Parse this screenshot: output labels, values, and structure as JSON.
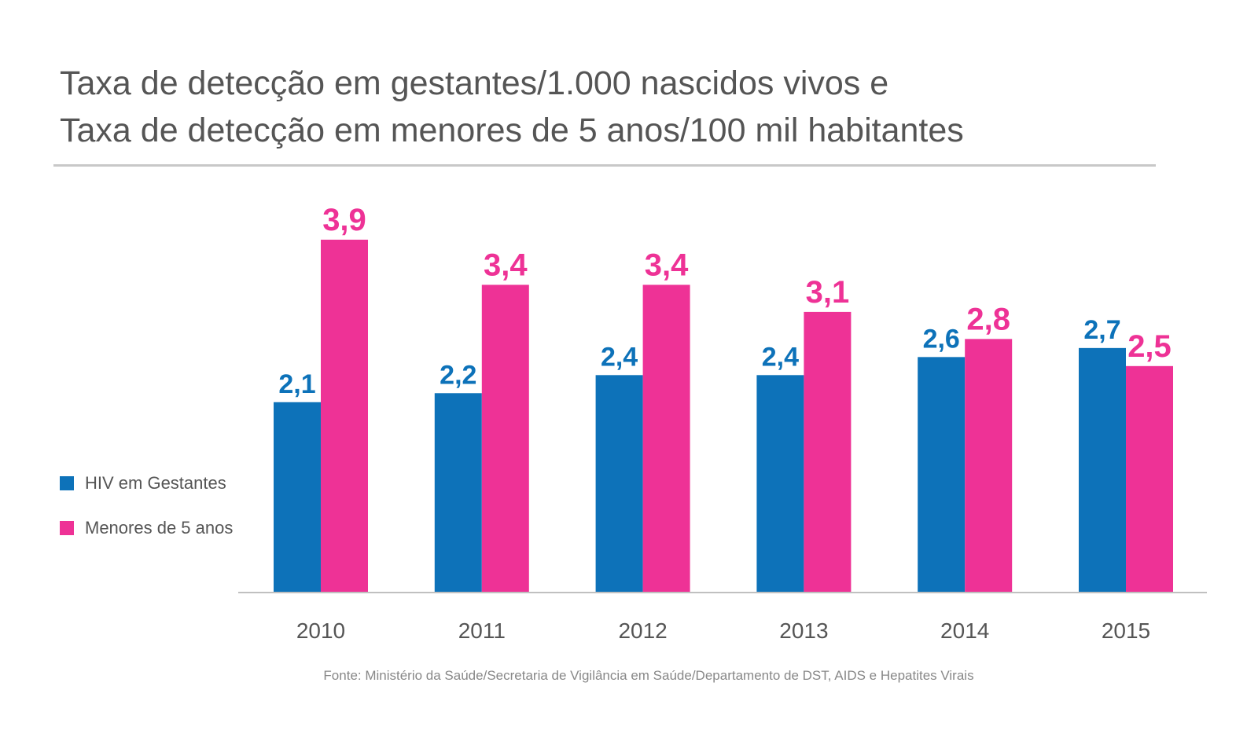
{
  "chart_data": {
    "type": "bar",
    "title_lines": [
      "Taxa de detecção em gestantes/1.000 nascidos vivos e",
      "Taxa de detecção em menores de 5 anos/100 mil habitantes"
    ],
    "categories": [
      "2010",
      "2011",
      "2012",
      "2013",
      "2014",
      "2015"
    ],
    "series": [
      {
        "name": "HIV em Gestantes",
        "values": [
          2.1,
          2.2,
          2.4,
          2.4,
          2.6,
          2.7
        ],
        "labels": [
          "2,1",
          "2,2",
          "2,4",
          "2,4",
          "2,6",
          "2,7"
        ],
        "color": "#0d72b9"
      },
      {
        "name": "Menores de 5 anos",
        "values": [
          3.9,
          3.4,
          3.4,
          3.1,
          2.8,
          2.5
        ],
        "labels": [
          "3,9",
          "3,4",
          "3,4",
          "3,1",
          "2,8",
          "2,5"
        ],
        "color": "#ee3296"
      }
    ],
    "ylim": [
      0,
      3.9
    ],
    "grid": false,
    "legend_position": "left",
    "source": "Fonte: Ministério da Saúde/Secretaria de Vigilância em Saúde/Departamento de DST, AIDS e Hepatites Virais"
  }
}
